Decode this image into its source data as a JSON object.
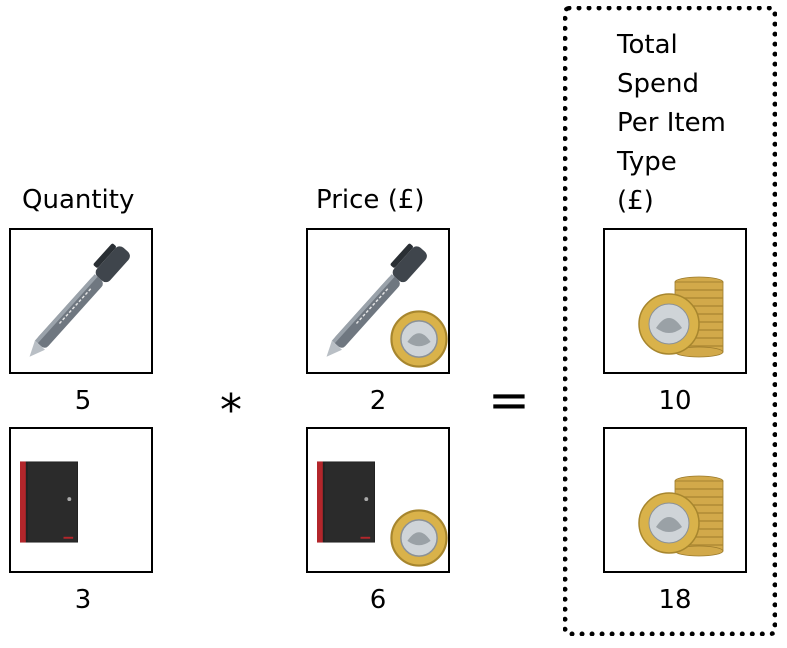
{
  "headers": {
    "quantity": "Quantity",
    "price": "Price (£)",
    "total_lines": [
      "Total",
      "Spend",
      "Per Item",
      "Type",
      "(£)"
    ]
  },
  "rows": [
    {
      "item_icon": "pen-icon",
      "quantity": "5",
      "price": "2",
      "total": "10"
    },
    {
      "item_icon": "notebook-icon",
      "quantity": "3",
      "price": "6",
      "total": "18"
    }
  ],
  "operators": {
    "multiply": "*",
    "equals": "="
  },
  "colors": {
    "pen_grey": "#6f7780",
    "notebook_black": "#222222",
    "notebook_red": "#b3262b",
    "coin_gold": "#d9b24a",
    "coin_silver": "#cfd4d8"
  }
}
